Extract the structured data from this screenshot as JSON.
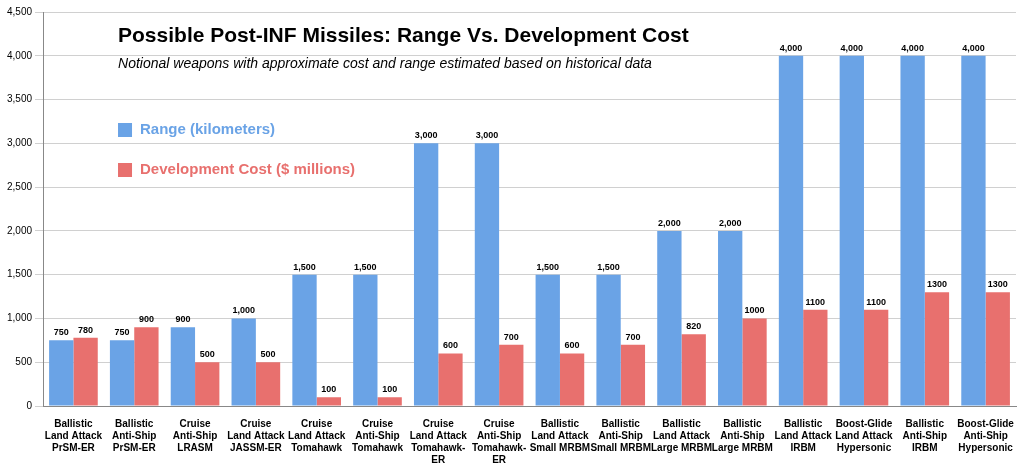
{
  "chart_data": {
    "type": "bar",
    "title": "Possible Post-INF Missiles: Range Vs. Development Cost",
    "subtitle": "Notional weapons with approximate cost and range estimated based on historical data",
    "categories": [
      [
        "Ballistic",
        "Land Attack",
        "PrSM-ER"
      ],
      [
        "Ballistic",
        "Anti-Ship",
        "PrSM-ER"
      ],
      [
        "Cruise",
        "Anti-Ship",
        "LRASM"
      ],
      [
        "Cruise",
        "Land Attack",
        "JASSM-ER"
      ],
      [
        "Cruise",
        "Land Attack",
        "Tomahawk"
      ],
      [
        "Cruise",
        "Anti-Ship",
        "Tomahawk"
      ],
      [
        "Cruise",
        "Land Attack",
        "Tomahawk-",
        "ER"
      ],
      [
        "Cruise",
        "Anti-Ship",
        "Tomahawk-",
        "ER"
      ],
      [
        "Ballistic",
        "Land Attack",
        "Small MRBM"
      ],
      [
        "Ballistic",
        "Anti-Ship",
        "Small MRBM"
      ],
      [
        "Ballistic",
        "Land Attack",
        "Large MRBM"
      ],
      [
        "Ballistic",
        "Anti-Ship",
        "Large MRBM"
      ],
      [
        "Ballistic",
        "Land Attack",
        "IRBM"
      ],
      [
        "Boost-Glide",
        "Land Attack",
        "Hypersonic"
      ],
      [
        "Ballistic",
        "Anti-Ship",
        "IRBM"
      ],
      [
        "Boost-Glide",
        "Anti-Ship",
        "Hypersonic"
      ]
    ],
    "series": [
      {
        "name": "Range (kilometers)",
        "color": "#6aa3e6",
        "values": [
          750,
          750,
          900,
          1000,
          1500,
          1500,
          3000,
          3000,
          1500,
          1500,
          2000,
          2000,
          4000,
          4000,
          4000,
          4000
        ],
        "value_labels": [
          "750",
          "750",
          "900",
          "1,000",
          "1,500",
          "1,500",
          "3,000",
          "3,000",
          "1,500",
          "1,500",
          "2,000",
          "2,000",
          "4,000",
          "4,000",
          "4,000",
          "4,000"
        ]
      },
      {
        "name": "Development Cost ($ millions)",
        "color": "#e8706e",
        "values": [
          780,
          900,
          500,
          500,
          100,
          100,
          600,
          700,
          600,
          700,
          820,
          1000,
          1100,
          1100,
          1300,
          1300
        ]
      }
    ],
    "ylim": [
      0,
      4500
    ],
    "yticks": [
      0,
      500,
      {
        "value": 1000,
        "label": "1,000"
      },
      {
        "value": 1500,
        "label": "1,500"
      },
      {
        "value": 2000,
        "label": "2,000"
      },
      {
        "value": 2500,
        "label": "2,500"
      },
      {
        "value": 3000,
        "label": "3,000"
      },
      {
        "value": 3500,
        "label": "3,500"
      },
      {
        "value": 4000,
        "label": "4,000"
      },
      {
        "value": 4500,
        "label": "4,500"
      }
    ],
    "grid": true,
    "legend": "upper left",
    "data_labels": true
  }
}
